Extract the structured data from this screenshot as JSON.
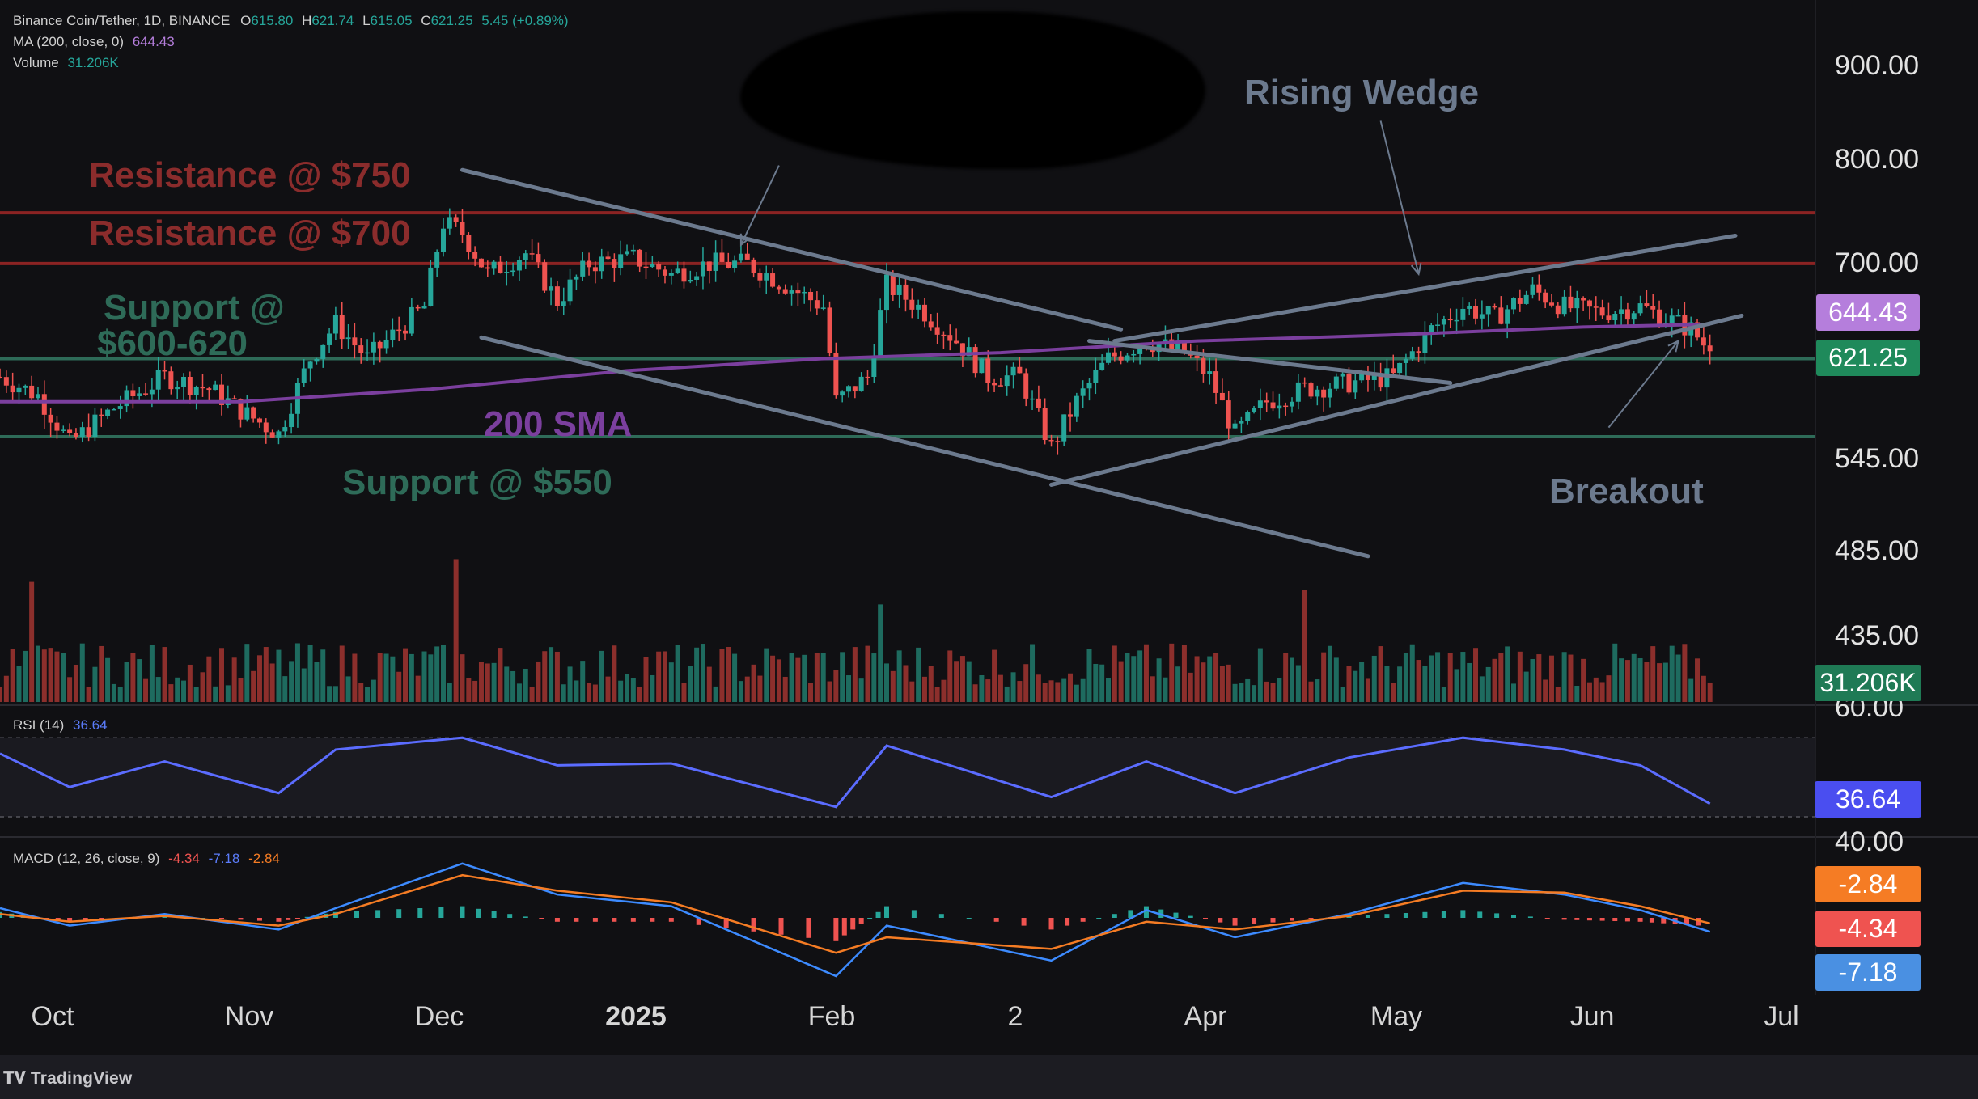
{
  "header": {
    "symbol": "Binance Coin/Tether, 1D, BINANCE",
    "open_label": "O",
    "open": "615.80",
    "high_label": "H",
    "high": "621.74",
    "low_label": "L",
    "low": "615.05",
    "close_label": "C",
    "close": "621.25",
    "change": "5.45 (+0.89%)",
    "ma_label": "MA (200, close, 0)",
    "ma_value": "644.43",
    "volume_label": "Volume",
    "volume_value": "31.206K"
  },
  "indicators": {
    "rsi_label": "RSI (14)",
    "rsi_value": "36.64",
    "macd_label": "MACD (12, 26, close, 9)",
    "macd_hist": "-4.34",
    "macd_line": "-7.18",
    "macd_signal": "-2.84"
  },
  "price_badges": {
    "ma": "644.43",
    "close": "621.25",
    "volume": "31.206K",
    "rsi": "36.64",
    "macd_signal": "-2.84",
    "macd_hist": "-4.34",
    "macd_line": "-7.18"
  },
  "annotations": {
    "resistance_750": "Resistance @ $750",
    "resistance_700": "Resistance @ $700",
    "support_600_line1": "Support @",
    "support_600_line2": "$600-620",
    "sma_label": "200 SMA",
    "support_550": "Support @ $550",
    "rising_wedge": "Rising Wedge",
    "breakout": "Breakout"
  },
  "footer": {
    "brand": "TradingView"
  },
  "colors": {
    "background": "#101013",
    "bull": "#26a69a",
    "bear": "#ef5350",
    "resistance": "#8b2323",
    "support": "#2e6b58",
    "sma": "#7b3f9e",
    "trendline": "#6c7a8e",
    "rsi": "#5b6cff",
    "macd_line": "#3d8bff",
    "macd_signal": "#f57c24",
    "badge_ma": "#b57edc",
    "badge_close": "#1f8a5b",
    "badge_rsi": "#4a4ef0",
    "badge_macd_signal": "#f57c24",
    "badge_macd_hist": "#ef5350",
    "badge_macd_line": "#4a90e2"
  },
  "chart_data": [
    {
      "type": "candlestick",
      "title": "Binance Coin/Tether, 1D, BINANCE",
      "x_axis": {
        "tick_labels": [
          "Oct",
          "Nov",
          "Dec",
          "2025",
          "Feb",
          "2",
          "Apr",
          "May",
          "Jun",
          "Jul"
        ]
      },
      "y_axis": {
        "tick_labels": [
          "900.00",
          "800.00",
          "700.00",
          "545.00",
          "485.00",
          "435.00"
        ],
        "scale": "log",
        "range": [
          420,
          940
        ]
      },
      "price_path": [
        [
          "2024-09-24",
          600
        ],
        [
          "2024-09-30",
          585
        ],
        [
          "2024-10-05",
          548
        ],
        [
          "2024-10-12",
          575
        ],
        [
          "2024-10-20",
          600
        ],
        [
          "2024-10-27",
          590
        ],
        [
          "2024-11-02",
          570
        ],
        [
          "2024-11-07",
          555
        ],
        [
          "2024-11-12",
          615
        ],
        [
          "2024-11-16",
          645
        ],
        [
          "2024-11-21",
          615
        ],
        [
          "2024-11-26",
          640
        ],
        [
          "2024-11-30",
          660
        ],
        [
          "2024-12-03",
          740
        ],
        [
          "2024-12-06",
          730
        ],
        [
          "2024-12-10",
          690
        ],
        [
          "2024-12-16",
          710
        ],
        [
          "2024-12-21",
          665
        ],
        [
          "2024-12-26",
          700
        ],
        [
          "2025-01-02",
          705
        ],
        [
          "2025-01-08",
          690
        ],
        [
          "2025-01-14",
          700
        ],
        [
          "2025-01-20",
          700
        ],
        [
          "2025-01-26",
          680
        ],
        [
          "2025-02-01",
          660
        ],
        [
          "2025-02-03",
          580
        ],
        [
          "2025-02-08",
          600
        ],
        [
          "2025-02-11",
          680
        ],
        [
          "2025-02-16",
          660
        ],
        [
          "2025-02-22",
          630
        ],
        [
          "2025-02-27",
          600
        ],
        [
          "2025-03-04",
          600
        ],
        [
          "2025-03-09",
          545
        ],
        [
          "2025-03-13",
          580
        ],
        [
          "2025-03-18",
          615
        ],
        [
          "2025-03-24",
          630
        ],
        [
          "2025-03-30",
          620
        ],
        [
          "2025-04-03",
          600
        ],
        [
          "2025-04-07",
          555
        ],
        [
          "2025-04-12",
          580
        ],
        [
          "2025-04-18",
          590
        ],
        [
          "2025-04-25",
          595
        ],
        [
          "2025-05-02",
          600
        ],
        [
          "2025-05-08",
          640
        ],
        [
          "2025-05-13",
          660
        ],
        [
          "2025-05-18",
          650
        ],
        [
          "2025-05-24",
          675
        ],
        [
          "2025-05-29",
          660
        ],
        [
          "2025-06-04",
          655
        ],
        [
          "2025-06-10",
          660
        ],
        [
          "2025-06-14",
          650
        ],
        [
          "2025-06-18",
          640
        ],
        [
          "2025-06-21",
          621.25
        ]
      ],
      "sma_200": [
        [
          "2024-09-24",
          580
        ],
        [
          "2024-11-01",
          580
        ],
        [
          "2024-12-01",
          590
        ],
        [
          "2025-01-01",
          605
        ],
        [
          "2025-02-01",
          615
        ],
        [
          "2025-03-01",
          620
        ],
        [
          "2025-04-01",
          630
        ],
        [
          "2025-05-01",
          635
        ],
        [
          "2025-06-01",
          642
        ],
        [
          "2025-06-21",
          644.43
        ]
      ],
      "horizontal_levels": [
        {
          "name": "Resistance @ $750",
          "value": 750
        },
        {
          "name": "Resistance @ $700",
          "value": 700
        },
        {
          "name": "Support @ $600-620",
          "value": 615
        },
        {
          "name": "Support @ $550",
          "value": 553
        }
      ],
      "volume_last": "31.206K"
    },
    {
      "type": "line",
      "title": "RSI (14)",
      "y_axis": {
        "tick_labels": [
          "60.00",
          "40.00"
        ]
      },
      "x": [
        "2024-09-24",
        "2024-10-05",
        "2024-10-20",
        "2024-11-07",
        "2024-11-16",
        "2024-12-06",
        "2024-12-21",
        "2025-01-08",
        "2025-02-03",
        "2025-02-11",
        "2025-03-09",
        "2025-03-24",
        "2025-04-07",
        "2025-04-25",
        "2025-05-13",
        "2025-05-29",
        "2025-06-10",
        "2025-06-21"
      ],
      "values": [
        62,
        45,
        58,
        42,
        64,
        70,
        56,
        57,
        35,
        66,
        40,
        58,
        42,
        60,
        70,
        64,
        56,
        36.64
      ]
    },
    {
      "type": "line",
      "title": "MACD (12, 26, close, 9)",
      "series": [
        {
          "name": "MACD",
          "values": [
            5,
            -4,
            2,
            -6,
            5,
            28,
            12,
            6,
            -30,
            -4,
            -22,
            4,
            -10,
            2,
            18,
            12,
            4,
            -7.18
          ]
        },
        {
          "name": "Signal",
          "values": [
            2,
            -2,
            1,
            -4,
            2,
            22,
            14,
            8,
            -18,
            -10,
            -16,
            -2,
            -6,
            1,
            14,
            13,
            6,
            -2.84
          ]
        }
      ],
      "histogram_last": -4.34
    }
  ]
}
